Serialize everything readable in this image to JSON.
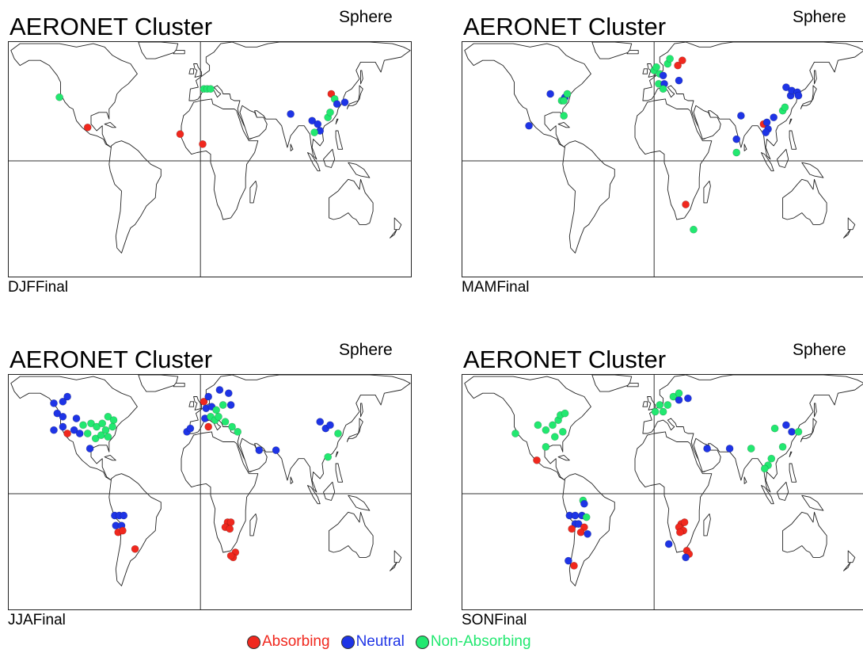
{
  "colors": {
    "absorbing": "#f0281e",
    "neutral": "#1e34e6",
    "non_absorbing": "#22e870"
  },
  "legend": [
    {
      "key": "absorbing",
      "label": "Absorbing",
      "color": "#f0281e"
    },
    {
      "key": "neutral",
      "label": "Neutral",
      "color": "#1e34e6"
    },
    {
      "key": "non_absorbing",
      "label": "Non-Absorbing",
      "color": "#22e870"
    }
  ],
  "panels": [
    {
      "title": "AERONET Cluster",
      "subtitle": "Sphere",
      "footer": "DJFFinal",
      "sites": [
        {
          "lon": -125,
          "lat": 38,
          "cls": "non_absorbing"
        },
        {
          "lon": -100,
          "lat": 20,
          "cls": "absorbing"
        },
        {
          "lon": -18,
          "lat": 16,
          "cls": "absorbing"
        },
        {
          "lon": 2,
          "lat": 10,
          "cls": "absorbing"
        },
        {
          "lon": 3,
          "lat": 43,
          "cls": "non_absorbing"
        },
        {
          "lon": 6,
          "lat": 43,
          "cls": "non_absorbing"
        },
        {
          "lon": 9,
          "lat": 43,
          "cls": "non_absorbing"
        },
        {
          "lon": 80,
          "lat": 28,
          "cls": "neutral"
        },
        {
          "lon": 99,
          "lat": 24,
          "cls": "neutral"
        },
        {
          "lon": 104,
          "lat": 22,
          "cls": "neutral"
        },
        {
          "lon": 106,
          "lat": 18,
          "cls": "neutral"
        },
        {
          "lon": 101,
          "lat": 17,
          "cls": "non_absorbing"
        },
        {
          "lon": 113,
          "lat": 26,
          "cls": "non_absorbing"
        },
        {
          "lon": 115,
          "lat": 29,
          "cls": "non_absorbing"
        },
        {
          "lon": 116,
          "lat": 40,
          "cls": "absorbing"
        },
        {
          "lon": 119,
          "lat": 37,
          "cls": "non_absorbing"
        },
        {
          "lon": 121,
          "lat": 34,
          "cls": "neutral"
        },
        {
          "lon": 128,
          "lat": 35,
          "cls": "neutral"
        }
      ]
    },
    {
      "title": "AERONET Cluster",
      "subtitle": "Sphere",
      "footer": "MAMFinal",
      "sites": [
        {
          "lon": -92,
          "lat": 40,
          "cls": "neutral"
        },
        {
          "lon": -82,
          "lat": 36,
          "cls": "non_absorbing"
        },
        {
          "lon": -79,
          "lat": 38,
          "cls": "neutral"
        },
        {
          "lon": -77,
          "lat": 40,
          "cls": "non_absorbing"
        },
        {
          "lon": -80,
          "lat": 36,
          "cls": "non_absorbing"
        },
        {
          "lon": -80,
          "lat": 27,
          "cls": "non_absorbing"
        },
        {
          "lon": -111,
          "lat": 21,
          "cls": "neutral"
        },
        {
          "lon": 0,
          "lat": 54,
          "cls": "non_absorbing"
        },
        {
          "lon": 2,
          "lat": 56,
          "cls": "non_absorbing"
        },
        {
          "lon": 5,
          "lat": 52,
          "cls": "non_absorbing"
        },
        {
          "lon": 8,
          "lat": 51,
          "cls": "neutral"
        },
        {
          "lon": 12,
          "lat": 58,
          "cls": "non_absorbing"
        },
        {
          "lon": 14,
          "lat": 61,
          "cls": "non_absorbing"
        },
        {
          "lon": 4,
          "lat": 46,
          "cls": "non_absorbing"
        },
        {
          "lon": 9,
          "lat": 46,
          "cls": "neutral"
        },
        {
          "lon": 8,
          "lat": 43,
          "cls": "non_absorbing"
        },
        {
          "lon": 21,
          "lat": 57,
          "cls": "absorbing"
        },
        {
          "lon": 25,
          "lat": 60,
          "cls": "absorbing"
        },
        {
          "lon": 22,
          "lat": 48,
          "cls": "neutral"
        },
        {
          "lon": 77,
          "lat": 27,
          "cls": "neutral"
        },
        {
          "lon": 73,
          "lat": 13,
          "cls": "neutral"
        },
        {
          "lon": 73,
          "lat": 5,
          "cls": "non_absorbing"
        },
        {
          "lon": 97,
          "lat": 22,
          "cls": "absorbing"
        },
        {
          "lon": 100,
          "lat": 23,
          "cls": "neutral"
        },
        {
          "lon": 101,
          "lat": 19,
          "cls": "neutral"
        },
        {
          "lon": 99,
          "lat": 17,
          "cls": "neutral"
        },
        {
          "lon": 106,
          "lat": 26,
          "cls": "neutral"
        },
        {
          "lon": 114,
          "lat": 30,
          "cls": "non_absorbing"
        },
        {
          "lon": 116,
          "lat": 32,
          "cls": "non_absorbing"
        },
        {
          "lon": 117,
          "lat": 44,
          "cls": "neutral"
        },
        {
          "lon": 121,
          "lat": 39,
          "cls": "neutral"
        },
        {
          "lon": 122,
          "lat": 42,
          "cls": "neutral"
        },
        {
          "lon": 127,
          "lat": 41,
          "cls": "neutral"
        },
        {
          "lon": 128,
          "lat": 39,
          "cls": "neutral"
        },
        {
          "lon": 28,
          "lat": -26,
          "cls": "absorbing"
        },
        {
          "lon": 35,
          "lat": -41,
          "cls": "non_absorbing"
        }
      ]
    },
    {
      "title": "AERONET Cluster",
      "subtitle": "Sphere",
      "footer": "JJAFinal",
      "sites": [
        {
          "lon": -130,
          "lat": 54,
          "cls": "neutral"
        },
        {
          "lon": -122,
          "lat": 55,
          "cls": "neutral"
        },
        {
          "lon": -118,
          "lat": 58,
          "cls": "neutral"
        },
        {
          "lon": -127,
          "lat": 48,
          "cls": "neutral"
        },
        {
          "lon": -122,
          "lat": 46,
          "cls": "neutral"
        },
        {
          "lon": -110,
          "lat": 45,
          "cls": "neutral"
        },
        {
          "lon": -130,
          "lat": 38,
          "cls": "neutral"
        },
        {
          "lon": -122,
          "lat": 40,
          "cls": "neutral"
        },
        {
          "lon": -118,
          "lat": 36,
          "cls": "absorbing"
        },
        {
          "lon": -112,
          "lat": 38,
          "cls": "neutral"
        },
        {
          "lon": -107,
          "lat": 36,
          "cls": "neutral"
        },
        {
          "lon": -104,
          "lat": 41,
          "cls": "non_absorbing"
        },
        {
          "lon": -97,
          "lat": 42,
          "cls": "non_absorbing"
        },
        {
          "lon": -92,
          "lat": 40,
          "cls": "non_absorbing"
        },
        {
          "lon": -87,
          "lat": 42,
          "cls": "non_absorbing"
        },
        {
          "lon": -82,
          "lat": 46,
          "cls": "non_absorbing"
        },
        {
          "lon": -77,
          "lat": 44,
          "cls": "non_absorbing"
        },
        {
          "lon": -100,
          "lat": 36,
          "cls": "non_absorbing"
        },
        {
          "lon": -93,
          "lat": 33,
          "cls": "non_absorbing"
        },
        {
          "lon": -88,
          "lat": 35,
          "cls": "non_absorbing"
        },
        {
          "lon": -84,
          "lat": 38,
          "cls": "non_absorbing"
        },
        {
          "lon": -82,
          "lat": 34,
          "cls": "non_absorbing"
        },
        {
          "lon": -78,
          "lat": 40,
          "cls": "non_absorbing"
        },
        {
          "lon": -98,
          "lat": 27,
          "cls": "neutral"
        },
        {
          "lon": 3,
          "lat": 55,
          "cls": "absorbing"
        },
        {
          "lon": 5,
          "lat": 51,
          "cls": "neutral"
        },
        {
          "lon": 10,
          "lat": 52,
          "cls": "neutral"
        },
        {
          "lon": 7,
          "lat": 58,
          "cls": "neutral"
        },
        {
          "lon": 17,
          "lat": 62,
          "cls": "neutral"
        },
        {
          "lon": 25,
          "lat": 60,
          "cls": "neutral"
        },
        {
          "lon": 14,
          "lat": 50,
          "cls": "non_absorbing"
        },
        {
          "lon": 20,
          "lat": 53,
          "cls": "non_absorbing"
        },
        {
          "lon": 27,
          "lat": 53,
          "cls": "neutral"
        },
        {
          "lon": 4,
          "lat": 45,
          "cls": "neutral"
        },
        {
          "lon": 9,
          "lat": 46,
          "cls": "non_absorbing"
        },
        {
          "lon": 13,
          "lat": 44,
          "cls": "non_absorbing"
        },
        {
          "lon": 16,
          "lat": 46,
          "cls": "non_absorbing"
        },
        {
          "lon": 7,
          "lat": 40,
          "cls": "absorbing"
        },
        {
          "lon": 22,
          "lat": 43,
          "cls": "non_absorbing"
        },
        {
          "lon": 28,
          "lat": 40,
          "cls": "non_absorbing"
        },
        {
          "lon": 33,
          "lat": 37,
          "cls": "non_absorbing"
        },
        {
          "lon": -12,
          "lat": 37,
          "cls": "neutral"
        },
        {
          "lon": -9,
          "lat": 39,
          "cls": "neutral"
        },
        {
          "lon": 52,
          "lat": 26,
          "cls": "neutral"
        },
        {
          "lon": 67,
          "lat": 26,
          "cls": "neutral"
        },
        {
          "lon": 106,
          "lat": 43,
          "cls": "neutral"
        },
        {
          "lon": 111,
          "lat": 39,
          "cls": "neutral"
        },
        {
          "lon": 115,
          "lat": 41,
          "cls": "neutral"
        },
        {
          "lon": 122,
          "lat": 36,
          "cls": "non_absorbing"
        },
        {
          "lon": 113,
          "lat": 22,
          "cls": "non_absorbing"
        },
        {
          "lon": -76,
          "lat": -13,
          "cls": "neutral"
        },
        {
          "lon": -72,
          "lat": -13,
          "cls": "neutral"
        },
        {
          "lon": -68,
          "lat": -13,
          "cls": "neutral"
        },
        {
          "lon": -75,
          "lat": -19,
          "cls": "neutral"
        },
        {
          "lon": -70,
          "lat": -19,
          "cls": "neutral"
        },
        {
          "lon": -73,
          "lat": -23,
          "cls": "absorbing"
        },
        {
          "lon": -69,
          "lat": -22,
          "cls": "absorbing"
        },
        {
          "lon": -58,
          "lat": -33,
          "cls": "absorbing"
        },
        {
          "lon": 24,
          "lat": -17,
          "cls": "absorbing"
        },
        {
          "lon": 27,
          "lat": -17,
          "cls": "absorbing"
        },
        {
          "lon": 22,
          "lat": -20,
          "cls": "absorbing"
        },
        {
          "lon": 26,
          "lat": -21,
          "cls": "absorbing"
        },
        {
          "lon": 31,
          "lat": -35,
          "cls": "absorbing"
        },
        {
          "lon": 29,
          "lat": -38,
          "cls": "absorbing"
        },
        {
          "lon": 27,
          "lat": -37,
          "cls": "absorbing"
        }
      ]
    },
    {
      "title": "AERONET Cluster",
      "subtitle": "Sphere",
      "footer": "SONFinal",
      "sites": [
        {
          "lon": -123,
          "lat": 36,
          "cls": "non_absorbing"
        },
        {
          "lon": -103,
          "lat": 41,
          "cls": "non_absorbing"
        },
        {
          "lon": -96,
          "lat": 38,
          "cls": "non_absorbing"
        },
        {
          "lon": -90,
          "lat": 41,
          "cls": "non_absorbing"
        },
        {
          "lon": -85,
          "lat": 44,
          "cls": "non_absorbing"
        },
        {
          "lon": -83,
          "lat": 47,
          "cls": "non_absorbing"
        },
        {
          "lon": -79,
          "lat": 48,
          "cls": "non_absorbing"
        },
        {
          "lon": -88,
          "lat": 34,
          "cls": "non_absorbing"
        },
        {
          "lon": -81,
          "lat": 37,
          "cls": "non_absorbing"
        },
        {
          "lon": -96,
          "lat": 28,
          "cls": "non_absorbing"
        },
        {
          "lon": -104,
          "lat": 20,
          "cls": "absorbing"
        },
        {
          "lon": 5,
          "lat": 53,
          "cls": "non_absorbing"
        },
        {
          "lon": 1,
          "lat": 49,
          "cls": "non_absorbing"
        },
        {
          "lon": 8,
          "lat": 49,
          "cls": "non_absorbing"
        },
        {
          "lon": 12,
          "lat": 53,
          "cls": "non_absorbing"
        },
        {
          "lon": 17,
          "lat": 58,
          "cls": "non_absorbing"
        },
        {
          "lon": 22,
          "lat": 56,
          "cls": "neutral"
        },
        {
          "lon": 30,
          "lat": 57,
          "cls": "neutral"
        },
        {
          "lon": 22,
          "lat": 60,
          "cls": "non_absorbing"
        },
        {
          "lon": 47,
          "lat": 27,
          "cls": "neutral"
        },
        {
          "lon": 67,
          "lat": 27,
          "cls": "neutral"
        },
        {
          "lon": 86,
          "lat": 27,
          "cls": "non_absorbing"
        },
        {
          "lon": 107,
          "lat": 39,
          "cls": "non_absorbing"
        },
        {
          "lon": 117,
          "lat": 41,
          "cls": "neutral"
        },
        {
          "lon": 122,
          "lat": 37,
          "cls": "neutral"
        },
        {
          "lon": 128,
          "lat": 37,
          "cls": "non_absorbing"
        },
        {
          "lon": 114,
          "lat": 28,
          "cls": "non_absorbing"
        },
        {
          "lon": 104,
          "lat": 21,
          "cls": "non_absorbing"
        },
        {
          "lon": 101,
          "lat": 17,
          "cls": "non_absorbing"
        },
        {
          "lon": 98,
          "lat": 15,
          "cls": "non_absorbing"
        },
        {
          "lon": -63,
          "lat": -4,
          "cls": "non_absorbing"
        },
        {
          "lon": -62,
          "lat": -6,
          "cls": "neutral"
        },
        {
          "lon": -75,
          "lat": -13,
          "cls": "neutral"
        },
        {
          "lon": -70,
          "lat": -13,
          "cls": "neutral"
        },
        {
          "lon": -64,
          "lat": -13,
          "cls": "neutral"
        },
        {
          "lon": -60,
          "lat": -14,
          "cls": "non_absorbing"
        },
        {
          "lon": -70,
          "lat": -18,
          "cls": "neutral"
        },
        {
          "lon": -67,
          "lat": -18,
          "cls": "neutral"
        },
        {
          "lon": -73,
          "lat": -21,
          "cls": "absorbing"
        },
        {
          "lon": -62,
          "lat": -20,
          "cls": "absorbing"
        },
        {
          "lon": -65,
          "lat": -23,
          "cls": "absorbing"
        },
        {
          "lon": -59,
          "lat": -24,
          "cls": "neutral"
        },
        {
          "lon": -76,
          "lat": -40,
          "cls": "neutral"
        },
        {
          "lon": -71,
          "lat": -43,
          "cls": "absorbing"
        },
        {
          "lon": 24,
          "lat": -18,
          "cls": "absorbing"
        },
        {
          "lon": 27,
          "lat": -17,
          "cls": "absorbing"
        },
        {
          "lon": 22,
          "lat": -20,
          "cls": "absorbing"
        },
        {
          "lon": 26,
          "lat": -22,
          "cls": "absorbing"
        },
        {
          "lon": 23,
          "lat": -23,
          "cls": "absorbing"
        },
        {
          "lon": 13,
          "lat": -30,
          "cls": "neutral"
        },
        {
          "lon": 29,
          "lat": -34,
          "cls": "absorbing"
        },
        {
          "lon": 31,
          "lat": -36,
          "cls": "absorbing"
        },
        {
          "lon": 28,
          "lat": -38,
          "cls": "neutral"
        }
      ]
    }
  ]
}
